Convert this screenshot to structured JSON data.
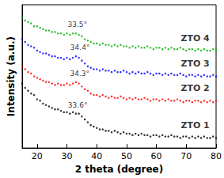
{
  "chart_data": {
    "type": "scatter",
    "marker": "circle",
    "grid": false,
    "tick_labels": "x",
    "x_label": "2 theta (degree)",
    "y_label": "Intensity (a.u.)",
    "xlim": [
      15,
      80
    ],
    "xticks": [
      20,
      30,
      40,
      50,
      60,
      70,
      80
    ],
    "ylim": [
      0,
      100
    ],
    "x": [
      15,
      16,
      17,
      18,
      19,
      20,
      21,
      22,
      23,
      24,
      25,
      26,
      27,
      28,
      29,
      30,
      31,
      32,
      33,
      34,
      35,
      36,
      37,
      38,
      39,
      40,
      41,
      42,
      43,
      44,
      45,
      46,
      47,
      48,
      49,
      50,
      51,
      52,
      53,
      54,
      55,
      56,
      57,
      58,
      59,
      60,
      61,
      62,
      63,
      64,
      65,
      66,
      67,
      68,
      69,
      70,
      71,
      72,
      73,
      74,
      75,
      76,
      77,
      78,
      79,
      80
    ],
    "series": [
      {
        "name": "ZTO 1",
        "color": "#000000",
        "values": [
          45,
          42,
          40,
          38,
          37,
          34,
          33,
          31,
          30,
          29,
          28,
          27,
          27,
          26,
          25,
          25,
          24,
          25,
          24,
          24,
          22,
          20,
          18,
          16,
          15,
          14,
          13,
          13,
          12,
          12,
          11,
          12,
          11,
          10,
          11,
          10,
          10,
          9,
          10,
          9,
          10,
          9,
          9,
          8,
          9,
          9,
          8,
          9,
          8,
          8,
          9,
          8,
          8,
          7,
          8,
          8,
          7,
          8,
          7,
          8,
          7,
          8,
          7,
          7,
          8,
          7
        ]
      },
      {
        "name": "ZTO 2",
        "color": "#ff0000",
        "values": [
          57,
          55,
          53,
          52,
          50,
          49,
          48,
          47,
          46,
          46,
          45,
          44,
          45,
          44,
          44,
          45,
          44,
          45,
          46,
          45,
          43,
          41,
          40,
          38,
          37,
          37,
          36,
          37,
          36,
          35,
          36,
          35,
          35,
          36,
          35,
          34,
          35,
          34,
          35,
          34,
          34,
          35,
          34,
          33,
          34,
          34,
          33,
          34,
          33,
          34,
          33,
          33,
          34,
          33,
          32,
          33,
          33,
          32,
          33,
          33,
          32,
          33,
          32,
          33,
          32,
          33
        ]
      },
      {
        "name": "ZTO 3",
        "color": "#0000ff",
        "values": [
          76,
          74,
          72,
          71,
          70,
          68,
          67,
          66,
          66,
          65,
          64,
          64,
          63,
          63,
          62,
          63,
          62,
          63,
          64,
          63,
          61,
          59,
          57,
          56,
          55,
          55,
          54,
          55,
          54,
          54,
          53,
          54,
          53,
          53,
          54,
          53,
          52,
          53,
          52,
          53,
          52,
          52,
          53,
          52,
          51,
          52,
          52,
          51,
          52,
          51,
          52,
          51,
          51,
          52,
          51,
          50,
          51,
          51,
          50,
          51,
          50,
          51,
          50,
          50,
          51,
          50
        ]
      },
      {
        "name": "ZTO 4",
        "color": "#00b000",
        "values": [
          91,
          89,
          88,
          87,
          85,
          85,
          84,
          83,
          82,
          82,
          81,
          81,
          80,
          80,
          79,
          80,
          79,
          80,
          80,
          79,
          78,
          76,
          75,
          74,
          73,
          73,
          72,
          73,
          72,
          72,
          71,
          72,
          71,
          72,
          71,
          71,
          70,
          71,
          70,
          71,
          70,
          70,
          71,
          70,
          69,
          70,
          70,
          69,
          70,
          69,
          70,
          69,
          69,
          70,
          69,
          68,
          69,
          69,
          68,
          69,
          68,
          69,
          68,
          68,
          69,
          68
        ]
      }
    ],
    "annotations": [
      {
        "text": "33.6°",
        "x": 33.6,
        "y": 30
      },
      {
        "text": "34.3°",
        "x": 34.3,
        "y": 52
      },
      {
        "text": "34.4°",
        "x": 34.4,
        "y": 70
      },
      {
        "text": "33.5°",
        "x": 33.5,
        "y": 86
      }
    ]
  }
}
